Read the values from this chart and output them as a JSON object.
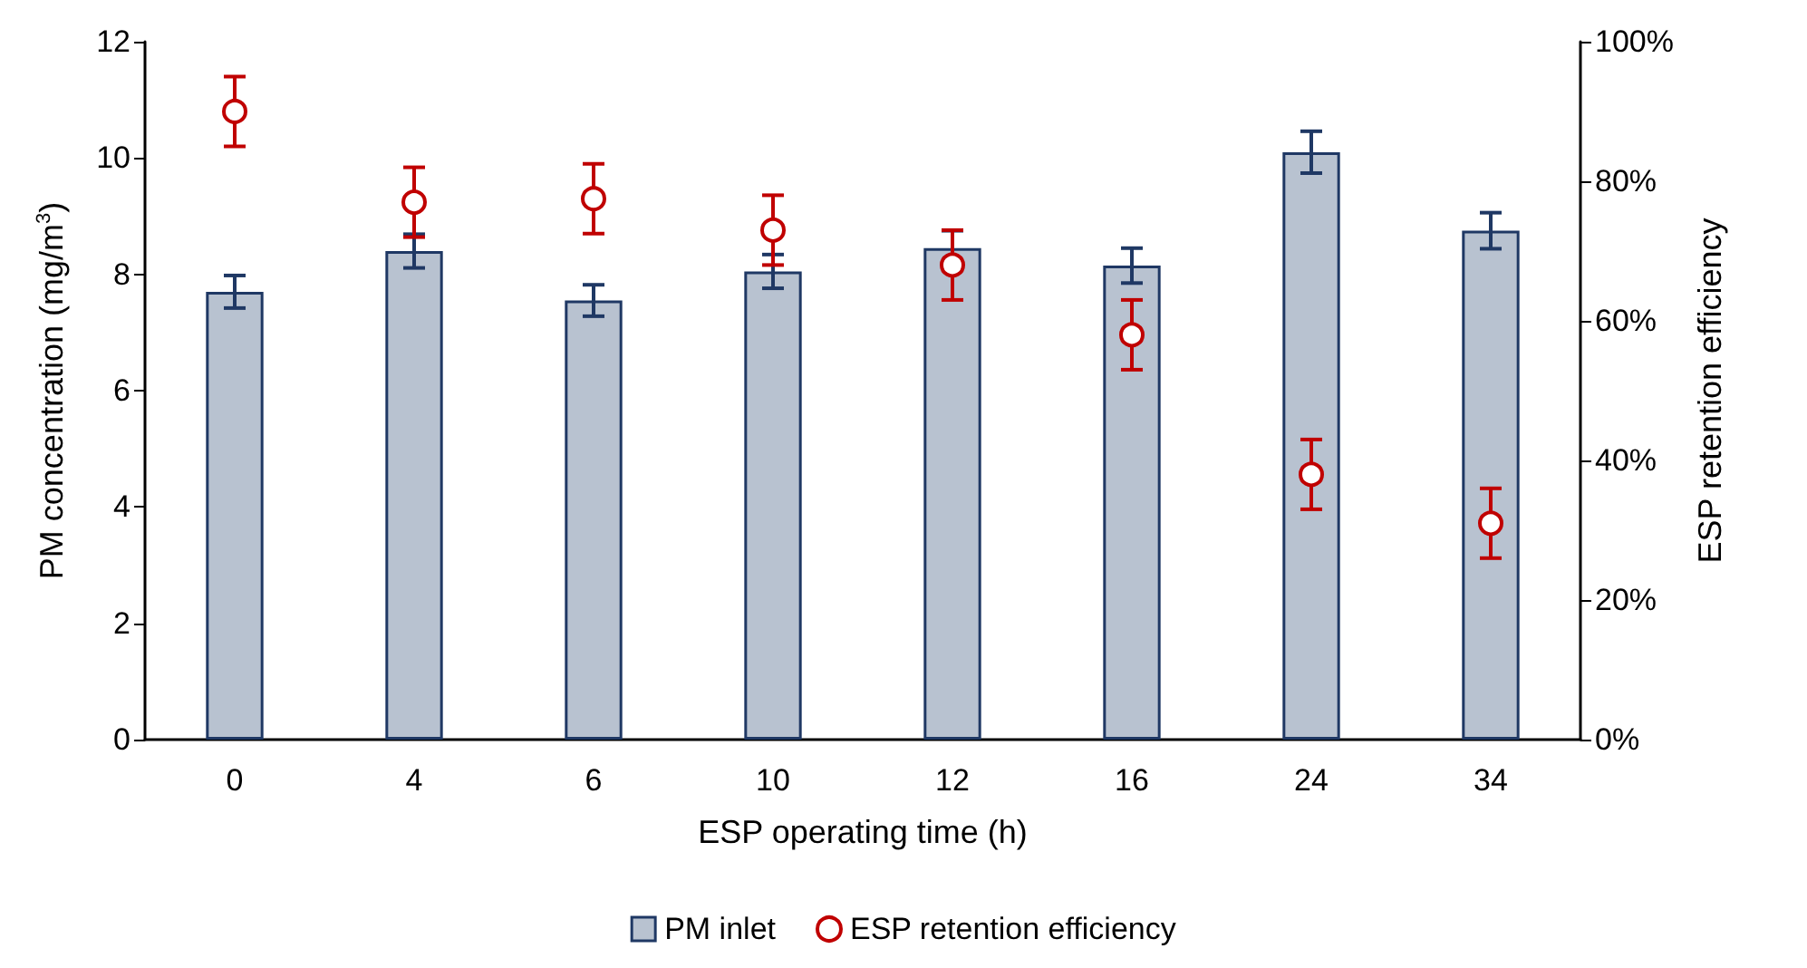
{
  "chart_data": {
    "type": "bar",
    "xlabel": "ESP operating time (h)",
    "ylabel": "PM concentration (mg/m$^{3}$)",
    "y2label": "ESP retention efficiency",
    "categories": [
      "0",
      "4",
      "6",
      "10",
      "12",
      "16",
      "24",
      "34"
    ],
    "series": [
      {
        "name": "PM inlet",
        "color": "#b8c2d0",
        "values": [
          7.7,
          8.4,
          7.55,
          8.05,
          8.45,
          8.15,
          10.1,
          8.75
        ],
        "errors": [
          0.28,
          0.29,
          0.27,
          0.29,
          0.3,
          0.3,
          0.36,
          0.31
        ]
      },
      {
        "name": "ESP retention efficiency",
        "type": "scatter",
        "axis": "y2",
        "marker": "circle",
        "color": "#c00000",
        "values": [
          90,
          77,
          77.5,
          73,
          68,
          58,
          38,
          31
        ],
        "errors": [
          5,
          5,
          5,
          5,
          5,
          5,
          5,
          5
        ]
      }
    ],
    "ylim": [
      0,
      12
    ],
    "yticks": [
      0,
      2,
      4,
      6,
      8,
      10,
      12
    ],
    "y2lim": [
      0,
      100
    ],
    "y2ticks": [
      {
        "value": 0,
        "label": "0%"
      },
      {
        "value": 20,
        "label": "20%"
      },
      {
        "value": 40,
        "label": "40%"
      },
      {
        "value": 60,
        "label": "60%"
      },
      {
        "value": 80,
        "label": "80%"
      },
      {
        "value": 100,
        "label": "100%"
      }
    ],
    "grid": false,
    "legend": "bottom"
  }
}
